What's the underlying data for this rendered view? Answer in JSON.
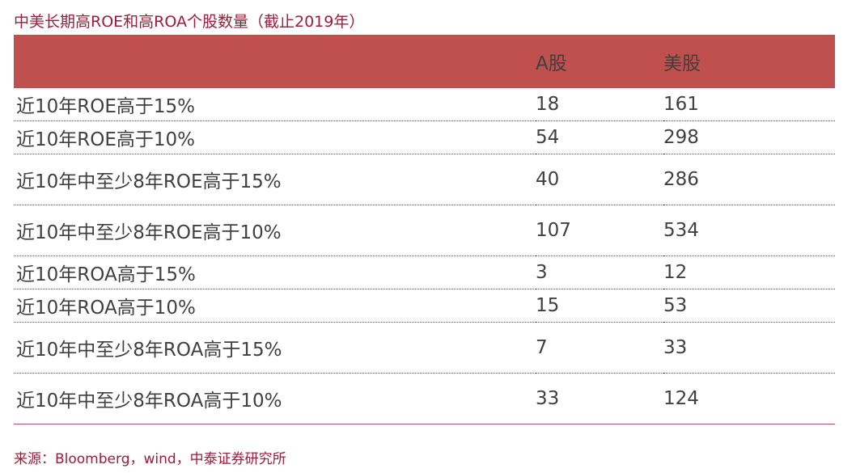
{
  "title": "中美长期高ROE和高ROA个股数量（截止2019年）",
  "table": {
    "headers": [
      "",
      "A股",
      "美股"
    ],
    "rows": [
      {
        "label": "近10年ROE高于15%",
        "a_share": "18",
        "us_share": "161"
      },
      {
        "label": "近10年ROE高于10%",
        "a_share": "54",
        "us_share": "298"
      },
      {
        "label": "近10年中至少8年ROE高于15%",
        "a_share": "40",
        "us_share": "286"
      },
      {
        "label": "近10年中至少8年ROE高于10%",
        "a_share": "107",
        "us_share": "534"
      },
      {
        "label": "近10年ROA高于15%",
        "a_share": "3",
        "us_share": "12"
      },
      {
        "label": "近10年ROA高于10%",
        "a_share": "15",
        "us_share": "53"
      },
      {
        "label": "近10年中至少8年ROA高于15%",
        "a_share": "7",
        "us_share": "33"
      },
      {
        "label": "近10年中至少8年ROA高于10%",
        "a_share": "33",
        "us_share": "124"
      }
    ]
  },
  "source": "来源：Bloomberg，wind，中泰证券研究所",
  "colors": {
    "header_bg": "#c0504d",
    "title_text": "#9e1b3a",
    "body_text": "#404040"
  }
}
